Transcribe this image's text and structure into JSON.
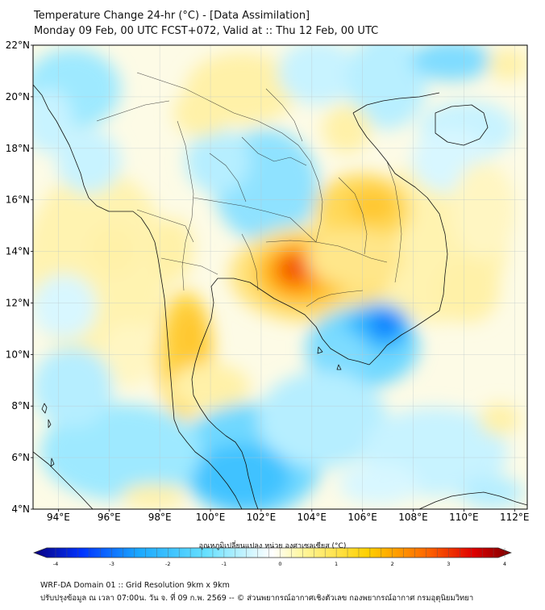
{
  "header": {
    "title": "Temperature Change 24-hr (°C) - [Data Assimilation]",
    "subtitle": "Monday 09 Feb, 00 UTC FCST+072, Valid at :: Thu 12 Feb, 00 UTC"
  },
  "axes": {
    "lat_labels": [
      "22°N",
      "20°N",
      "18°N",
      "16°N",
      "14°N",
      "12°N",
      "10°N",
      "8°N",
      "6°N",
      "4°N"
    ],
    "lon_labels": [
      "94°E",
      "96°E",
      "98°E",
      "100°E",
      "102°E",
      "104°E",
      "106°E",
      "108°E",
      "110°E",
      "112°E"
    ],
    "lat_range": [
      4,
      22
    ],
    "lon_range": [
      93,
      112.5
    ],
    "grid": true
  },
  "colorbar": {
    "label": "อุณหภูมิเปลี่ยนแปลง หน่วย องศาเซลเซียส (°C)",
    "ticks": [
      "-4",
      "-3",
      "-2",
      "-1",
      "0",
      "1",
      "2",
      "3",
      "4"
    ],
    "range": [
      -4,
      4
    ],
    "colors": [
      "#0a0080",
      "#0033ff",
      "#1aa8ff",
      "#66e0ff",
      "#ffffff",
      "#fff7a0",
      "#ffd000",
      "#ff6a00",
      "#e00000",
      "#7a0000"
    ]
  },
  "footer": {
    "line1": "WRF-DA Domain 01 :: Grid Resolution 9km x 9km",
    "line2": "ปรับปรุงข้อมูล ณ เวลา 07:00น. วัน จ. ที่ 09 ก.พ. 2569 -- © ส่วนพยากรณ์อากาศเชิงตัวเลข กองพยากรณ์อากาศ กรมอุตุนิยมวิทยา"
  },
  "field_features": [
    {
      "name": "warm core",
      "lon": 103.1,
      "lat": 13.3,
      "value": 2.8
    },
    {
      "name": "warm",
      "lon": 105.8,
      "lat": 15.5,
      "value": 1.1
    },
    {
      "name": "warm",
      "lon": 98.8,
      "lat": 9.8,
      "value": 1.3
    },
    {
      "name": "warm",
      "lon": 99.5,
      "lat": 11.6,
      "value": 1.0
    },
    {
      "name": "cold core",
      "lon": 106.8,
      "lat": 11.2,
      "value": -2.2
    },
    {
      "name": "cold",
      "lon": 101.8,
      "lat": 5.6,
      "value": -1.2
    },
    {
      "name": "cold",
      "lon": 102.5,
      "lat": 17.6,
      "value": -0.9
    },
    {
      "name": "cold",
      "lon": 110.2,
      "lat": 21.0,
      "value": -1.2
    },
    {
      "name": "cold",
      "lon": 94.8,
      "lat": 17.0,
      "value": -0.5
    },
    {
      "name": "warm",
      "lon": 101.8,
      "lat": 20.2,
      "value": 0.7
    },
    {
      "name": "warm",
      "lon": 111.6,
      "lat": 21.3,
      "value": 0.6
    }
  ]
}
